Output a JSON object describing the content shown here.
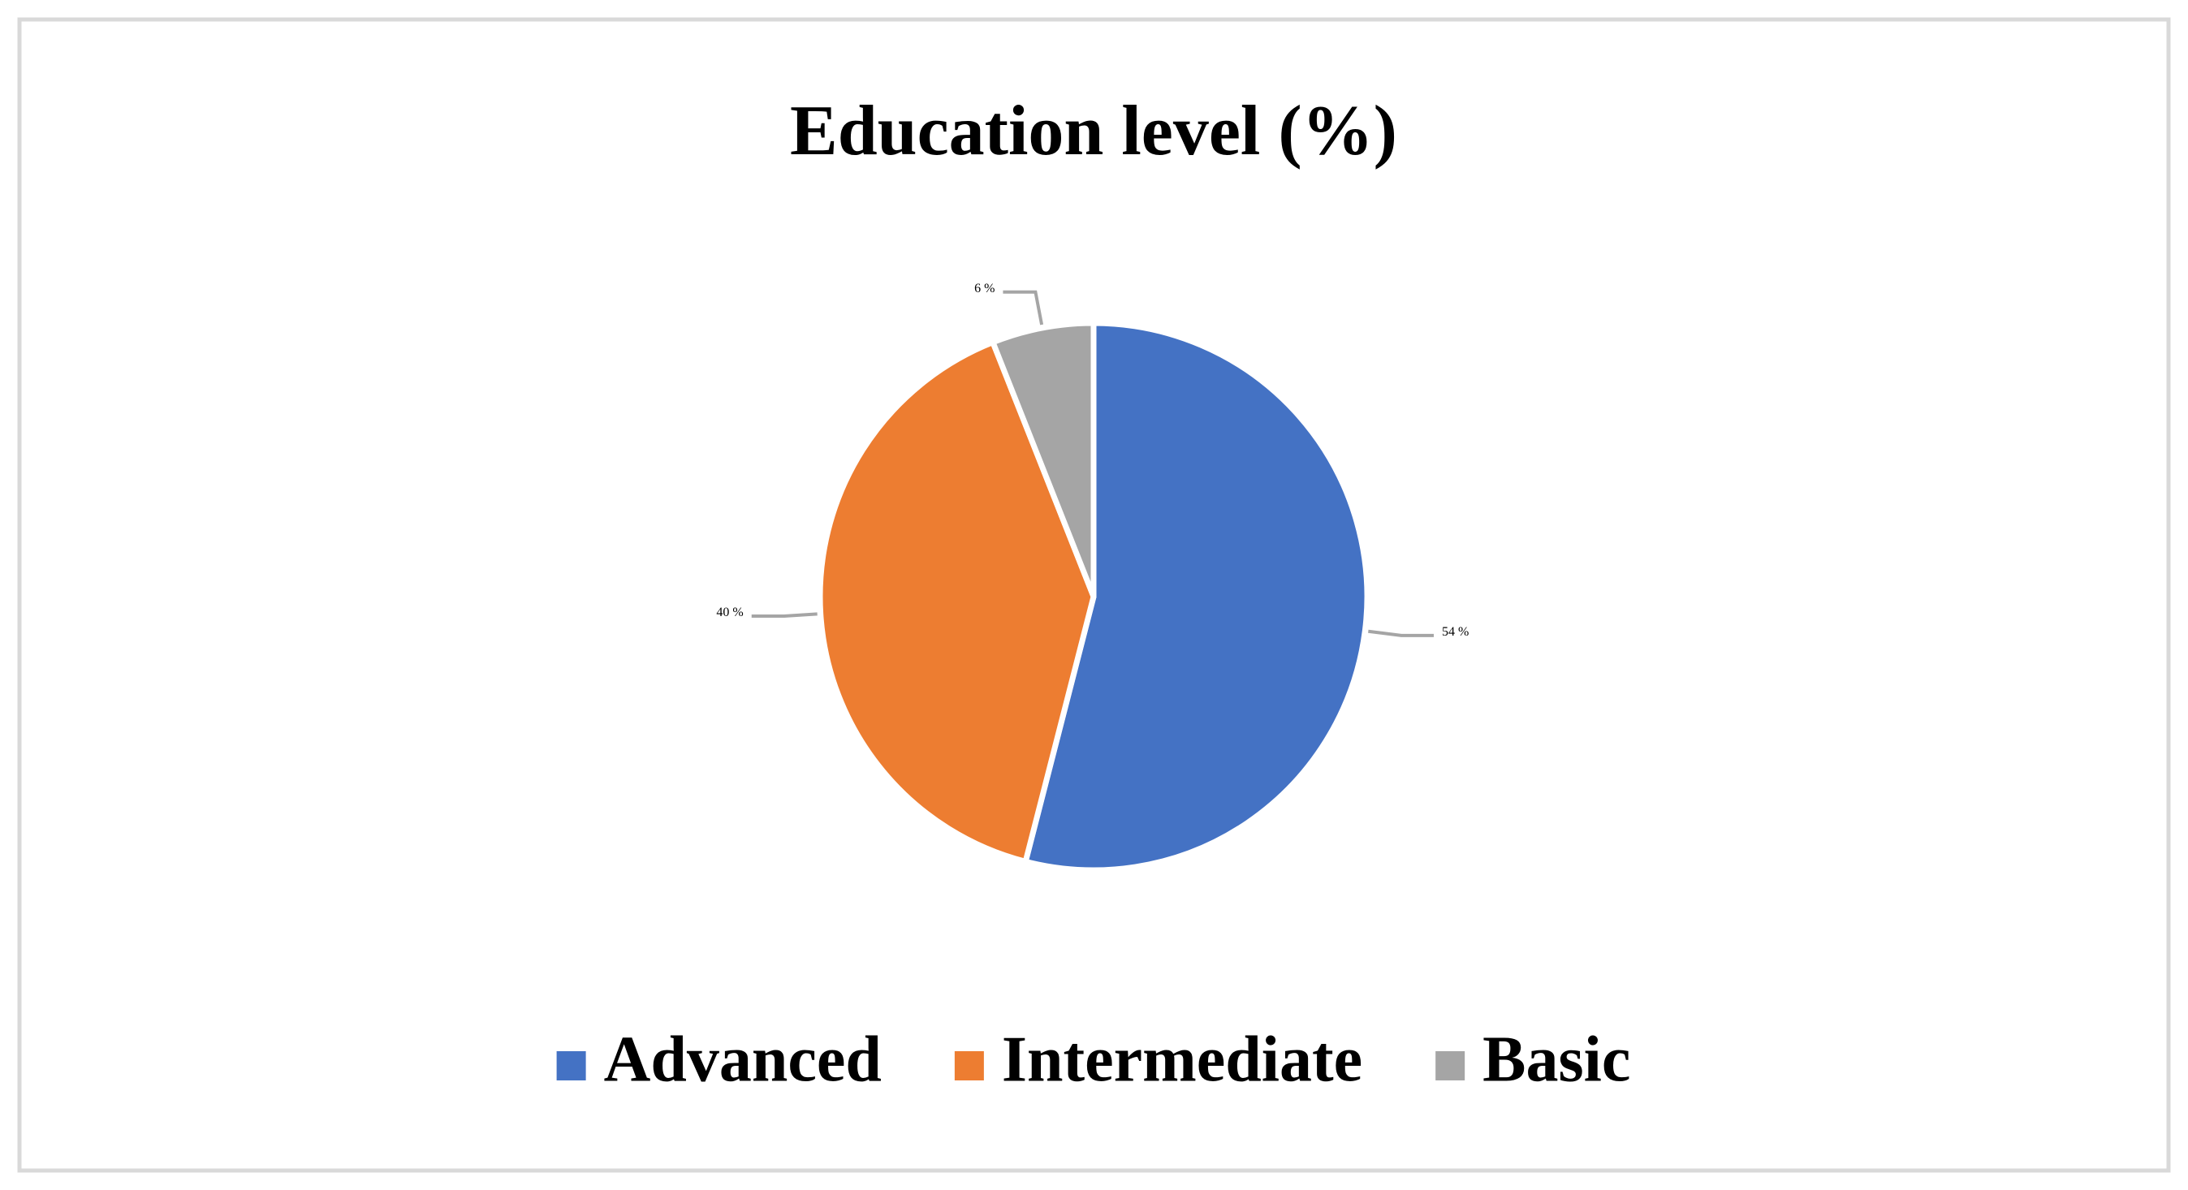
{
  "chart_data": {
    "type": "pie",
    "title": "Education level (%)",
    "categories": [
      "Advanced",
      "Intermediate",
      "Basic"
    ],
    "values": [
      54,
      40,
      6
    ],
    "value_labels": [
      "54 %",
      "40 %",
      "6 %"
    ],
    "colors": [
      "#4472c4",
      "#ed7d31",
      "#a5a5a5"
    ],
    "legend": "bottom"
  }
}
